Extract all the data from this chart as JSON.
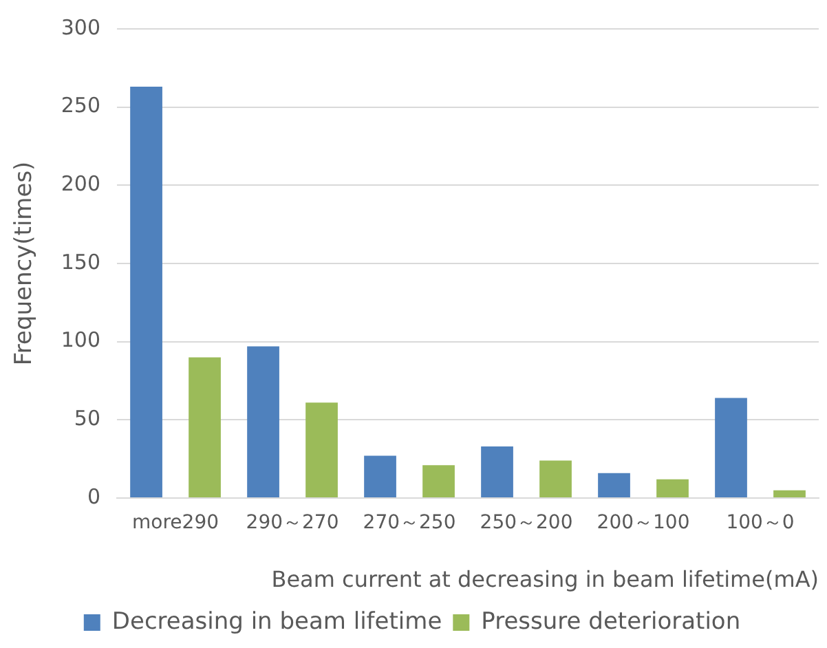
{
  "chart_data": {
    "type": "bar",
    "xlabel": "Beam current at decreasing in beam lifetime(mA)",
    "ylabel": "Frequency(times)",
    "categories": [
      "more290",
      "290～270",
      "270～250",
      "250～200",
      "200～100",
      "100～0"
    ],
    "series": [
      {
        "name": "Decreasing in beam lifetime",
        "color": "#4f81bd",
        "values": [
          263,
          97,
          27,
          33,
          16,
          64
        ]
      },
      {
        "name": "Pressure deterioration",
        "color": "#9bbb59",
        "values": [
          90,
          61,
          21,
          24,
          12,
          5
        ]
      }
    ],
    "ylim": [
      0,
      300
    ],
    "yticks": [
      0,
      50,
      100,
      150,
      200,
      250,
      300
    ],
    "grid": "y",
    "legend": "bottom"
  }
}
